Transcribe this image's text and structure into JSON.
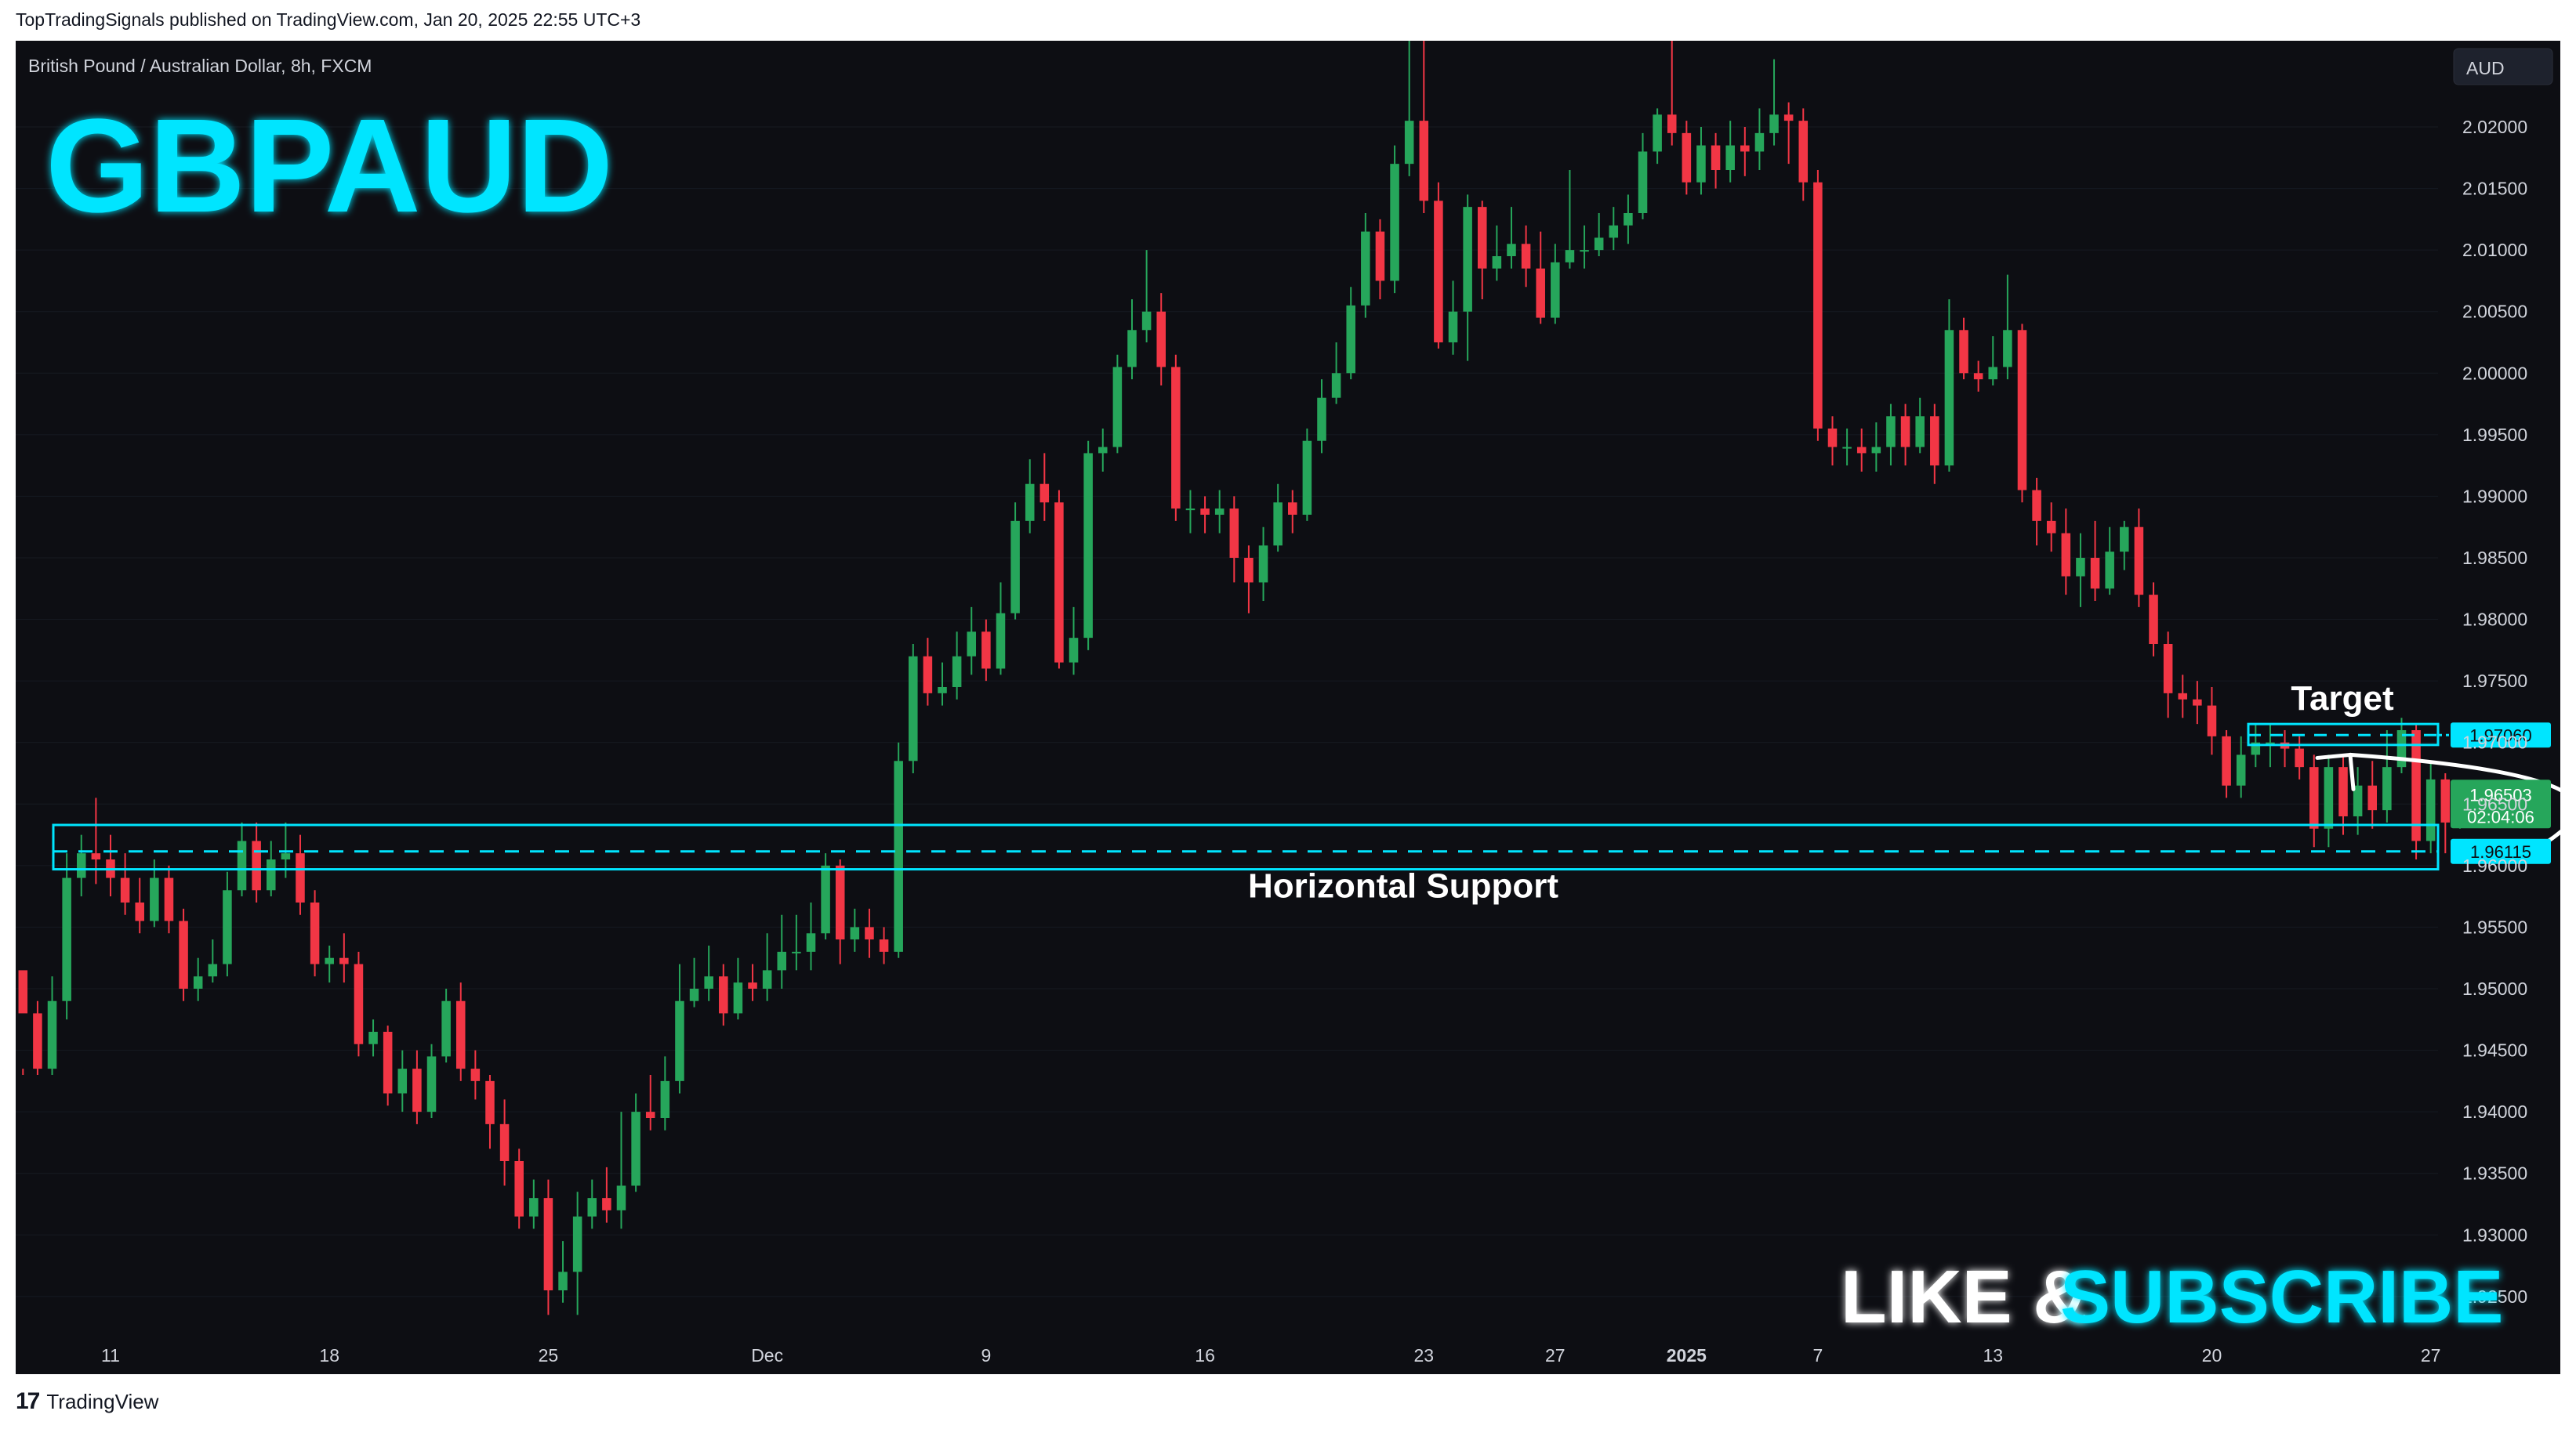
{
  "header": {
    "published_by": "TopTradingSignals published on TradingView.com, Jan 20, 2025 22:55 UTC+3"
  },
  "footer": {
    "brand": "TradingView"
  },
  "chart_meta": {
    "symbol_title": "British Pound / Australian Dollar, 8h, FXCM",
    "big_ticker": "GBPAUD",
    "currency_button": "AUD",
    "cta_like": "LIKE &",
    "cta_subscribe": "SUBSCRIBE",
    "current_price_label": "1.96503",
    "countdown_label": "02:04:06",
    "support_price_label": "1.96115",
    "target_price_label": "1.97060",
    "colors": {
      "background": "#0d0e13",
      "up_candle": "#26a65b",
      "down_candle": "#f23645",
      "annotation": "#00e5ff",
      "text": "#d1d4dc"
    }
  },
  "chart_data": {
    "type": "candlestick",
    "title": "British Pound / Australian Dollar, 8h, FXCM",
    "timeframe": "8h",
    "y_axis": {
      "side": "right",
      "ylim": [
        1.922,
        2.027
      ],
      "ticks": [
        1.925,
        1.93,
        1.935,
        1.94,
        1.945,
        1.95,
        1.955,
        1.96,
        1.965,
        1.97,
        1.975,
        1.98,
        1.985,
        1.99,
        1.995,
        2.0,
        2.005,
        2.01,
        2.015,
        2.02
      ],
      "tick_labels": [
        "1.92500",
        "1.93000",
        "1.93500",
        "1.94000",
        "1.94500",
        "1.95000",
        "1.95500",
        "1.96000",
        "1.96500",
        "1.97000",
        "1.97500",
        "1.98000",
        "1.98500",
        "1.99000",
        "1.99500",
        "2.00000",
        "2.00500",
        "2.01000",
        "2.01500",
        "2.02000"
      ]
    },
    "x_axis": {
      "labels": [
        {
          "text": "11",
          "bar": 6
        },
        {
          "text": "18",
          "bar": 21
        },
        {
          "text": "25",
          "bar": 36
        },
        {
          "text": "Dec",
          "bar": 51
        },
        {
          "text": "9",
          "bar": 66
        },
        {
          "text": "16",
          "bar": 81
        },
        {
          "text": "23",
          "bar": 96
        },
        {
          "text": "27",
          "bar": 105
        },
        {
          "text": "2025",
          "bar": 114
        },
        {
          "text": "7",
          "bar": 123
        },
        {
          "text": "13",
          "bar": 135
        },
        {
          "text": "20",
          "bar": 150
        },
        {
          "text": "27",
          "bar": 165
        }
      ]
    },
    "total_slots": 166,
    "candles": [
      [
        1.9515,
        1.948,
        1.9435,
        1.943
      ],
      [
        1.948,
        1.9435,
        1.949,
        1.943
      ],
      [
        1.9435,
        1.949,
        1.951,
        1.943
      ],
      [
        1.949,
        1.959,
        1.961,
        1.9475
      ],
      [
        1.959,
        1.961,
        1.9625,
        1.9575
      ],
      [
        1.961,
        1.9605,
        1.9655,
        1.9585
      ],
      [
        1.9605,
        1.959,
        1.9625,
        1.9575
      ],
      [
        1.959,
        1.957,
        1.961,
        1.956
      ],
      [
        1.957,
        1.9555,
        1.959,
        1.9545
      ],
      [
        1.9555,
        1.959,
        1.9605,
        1.955
      ],
      [
        1.959,
        1.9555,
        1.96,
        1.9545
      ],
      [
        1.9555,
        1.95,
        1.9565,
        1.949
      ],
      [
        1.95,
        1.951,
        1.9525,
        1.949
      ],
      [
        1.951,
        1.952,
        1.954,
        1.9505
      ],
      [
        1.952,
        1.958,
        1.9595,
        1.951
      ],
      [
        1.958,
        1.962,
        1.9635,
        1.9575
      ],
      [
        1.962,
        1.958,
        1.9635,
        1.957
      ],
      [
        1.958,
        1.9605,
        1.962,
        1.9575
      ],
      [
        1.9605,
        1.961,
        1.9635,
        1.959
      ],
      [
        1.961,
        1.957,
        1.9625,
        1.956
      ],
      [
        1.957,
        1.952,
        1.958,
        1.951
      ],
      [
        1.952,
        1.9525,
        1.9535,
        1.9505
      ],
      [
        1.9525,
        1.952,
        1.9545,
        1.9505
      ],
      [
        1.952,
        1.9455,
        1.953,
        1.9445
      ],
      [
        1.9455,
        1.9465,
        1.9475,
        1.9445
      ],
      [
        1.9465,
        1.9415,
        1.947,
        1.9405
      ],
      [
        1.9415,
        1.9435,
        1.945,
        1.94
      ],
      [
        1.9435,
        1.94,
        1.945,
        1.939
      ],
      [
        1.94,
        1.9445,
        1.9455,
        1.9395
      ],
      [
        1.9445,
        1.949,
        1.95,
        1.944
      ],
      [
        1.949,
        1.9435,
        1.9505,
        1.9425
      ],
      [
        1.9435,
        1.9425,
        1.945,
        1.941
      ],
      [
        1.9425,
        1.939,
        1.943,
        1.937
      ],
      [
        1.939,
        1.936,
        1.941,
        1.934
      ],
      [
        1.936,
        1.9315,
        1.937,
        1.9305
      ],
      [
        1.9315,
        1.933,
        1.9345,
        1.9305
      ],
      [
        1.933,
        1.9255,
        1.9345,
        1.9235
      ],
      [
        1.9255,
        1.927,
        1.9295,
        1.9245
      ],
      [
        1.927,
        1.9315,
        1.9335,
        1.9235
      ],
      [
        1.9315,
        1.933,
        1.9345,
        1.9305
      ],
      [
        1.933,
        1.932,
        1.9355,
        1.931
      ],
      [
        1.932,
        1.934,
        1.94,
        1.9305
      ],
      [
        1.934,
        1.94,
        1.9415,
        1.9335
      ],
      [
        1.94,
        1.9395,
        1.943,
        1.9385
      ],
      [
        1.9395,
        1.9425,
        1.9445,
        1.9385
      ],
      [
        1.9425,
        1.949,
        1.952,
        1.9415
      ],
      [
        1.949,
        1.95,
        1.9525,
        1.9485
      ],
      [
        1.95,
        1.951,
        1.9535,
        1.949
      ],
      [
        1.951,
        1.948,
        1.952,
        1.947
      ],
      [
        1.948,
        1.9505,
        1.9525,
        1.9475
      ],
      [
        1.9505,
        1.95,
        1.952,
        1.949
      ],
      [
        1.95,
        1.9515,
        1.9545,
        1.949
      ],
      [
        1.9515,
        1.953,
        1.956,
        1.95
      ],
      [
        1.953,
        1.953,
        1.956,
        1.9515
      ],
      [
        1.953,
        1.9545,
        1.957,
        1.9515
      ],
      [
        1.9545,
        1.96,
        1.961,
        1.954
      ],
      [
        1.96,
        1.954,
        1.9605,
        1.952
      ],
      [
        1.954,
        1.955,
        1.9565,
        1.953
      ],
      [
        1.955,
        1.954,
        1.9565,
        1.9525
      ],
      [
        1.954,
        1.953,
        1.955,
        1.952
      ],
      [
        1.953,
        1.9685,
        1.97,
        1.9525
      ],
      [
        1.9685,
        1.977,
        1.978,
        1.9675
      ],
      [
        1.977,
        1.974,
        1.9785,
        1.973
      ],
      [
        1.974,
        1.9745,
        1.9765,
        1.973
      ],
      [
        1.9745,
        1.977,
        1.979,
        1.9735
      ],
      [
        1.977,
        1.979,
        1.981,
        1.9755
      ],
      [
        1.979,
        1.976,
        1.98,
        1.975
      ],
      [
        1.976,
        1.9805,
        1.983,
        1.9755
      ],
      [
        1.9805,
        1.988,
        1.9895,
        1.98
      ],
      [
        1.988,
        1.991,
        1.993,
        1.987
      ],
      [
        1.991,
        1.9895,
        1.9935,
        1.988
      ],
      [
        1.9895,
        1.9765,
        1.9905,
        1.976
      ],
      [
        1.9765,
        1.9785,
        1.981,
        1.9755
      ],
      [
        1.9785,
        1.9935,
        1.9945,
        1.9775
      ],
      [
        1.9935,
        1.994,
        1.9955,
        1.992
      ],
      [
        1.994,
        2.0005,
        2.0015,
        1.9935
      ],
      [
        2.0005,
        2.0035,
        2.006,
        1.9995
      ],
      [
        2.0035,
        2.005,
        2.01,
        2.0025
      ],
      [
        2.005,
        2.0005,
        2.0065,
        1.999
      ],
      [
        2.0005,
        1.989,
        2.0015,
        1.988
      ],
      [
        1.989,
        1.989,
        1.9905,
        1.987
      ],
      [
        1.989,
        1.9885,
        1.99,
        1.987
      ],
      [
        1.9885,
        1.989,
        1.9905,
        1.987
      ],
      [
        1.989,
        1.985,
        1.99,
        1.983
      ],
      [
        1.985,
        1.983,
        1.986,
        1.9805
      ],
      [
        1.983,
        1.986,
        1.9875,
        1.9815
      ],
      [
        1.986,
        1.9895,
        1.991,
        1.9855
      ],
      [
        1.9895,
        1.9885,
        1.9905,
        1.987
      ],
      [
        1.9885,
        1.9945,
        1.9955,
        1.988
      ],
      [
        1.9945,
        1.998,
        1.9995,
        1.9935
      ],
      [
        1.998,
        2.0,
        2.0025,
        1.9975
      ],
      [
        2.0,
        2.0055,
        2.007,
        1.9995
      ],
      [
        2.0055,
        2.0115,
        2.013,
        2.0045
      ],
      [
        2.0115,
        2.0075,
        2.0125,
        2.006
      ],
      [
        2.0075,
        2.017,
        2.0185,
        2.0065
      ],
      [
        2.017,
        2.0205,
        2.027,
        2.016
      ],
      [
        2.0205,
        2.014,
        2.027,
        2.013
      ],
      [
        2.014,
        2.0025,
        2.0155,
        2.002
      ],
      [
        2.0025,
        2.005,
        2.0075,
        2.0015
      ],
      [
        2.005,
        2.0135,
        2.0145,
        2.001
      ],
      [
        2.0135,
        2.0085,
        2.014,
        2.006
      ],
      [
        2.0085,
        2.0095,
        2.012,
        2.0075
      ],
      [
        2.0095,
        2.0105,
        2.0135,
        2.0085
      ],
      [
        2.0105,
        2.0085,
        2.012,
        2.007
      ],
      [
        2.0085,
        2.0045,
        2.0115,
        2.004
      ],
      [
        2.0045,
        2.009,
        2.0105,
        2.004
      ],
      [
        2.009,
        2.01,
        2.0165,
        2.0085
      ],
      [
        2.01,
        2.01,
        2.012,
        2.0085
      ],
      [
        2.01,
        2.011,
        2.013,
        2.0095
      ],
      [
        2.011,
        2.012,
        2.0135,
        2.01
      ],
      [
        2.012,
        2.013,
        2.0145,
        2.0105
      ],
      [
        2.013,
        2.018,
        2.0195,
        2.0125
      ],
      [
        2.018,
        2.021,
        2.0215,
        2.017
      ],
      [
        2.021,
        2.0195,
        2.027,
        2.0185
      ],
      [
        2.0195,
        2.0155,
        2.0205,
        2.0145
      ],
      [
        2.0155,
        2.0185,
        2.02,
        2.0145
      ],
      [
        2.0185,
        2.0165,
        2.0195,
        2.015
      ],
      [
        2.0165,
        2.0185,
        2.0205,
        2.0155
      ],
      [
        2.0185,
        2.018,
        2.02,
        2.016
      ],
      [
        2.018,
        2.0195,
        2.0215,
        2.0165
      ],
      [
        2.0195,
        2.021,
        2.0255,
        2.0185
      ],
      [
        2.021,
        2.0205,
        2.022,
        2.017
      ],
      [
        2.0205,
        2.0155,
        2.0215,
        2.014
      ],
      [
        2.0155,
        1.9955,
        2.0165,
        1.9945
      ],
      [
        1.9955,
        1.994,
        1.9965,
        1.9925
      ],
      [
        1.994,
        1.994,
        1.9955,
        1.9925
      ],
      [
        1.994,
        1.9935,
        1.9955,
        1.992
      ],
      [
        1.9935,
        1.994,
        1.996,
        1.992
      ],
      [
        1.994,
        1.9965,
        1.9975,
        1.9925
      ],
      [
        1.9965,
        1.994,
        1.9975,
        1.9925
      ],
      [
        1.994,
        1.9965,
        1.998,
        1.9935
      ],
      [
        1.9965,
        1.9925,
        1.9975,
        1.991
      ],
      [
        1.9925,
        2.0035,
        2.006,
        1.992
      ],
      [
        2.0035,
        2.0,
        2.0045,
        1.9995
      ],
      [
        2.0,
        1.9995,
        2.001,
        1.9985
      ],
      [
        1.9995,
        2.0005,
        2.003,
        1.999
      ],
      [
        2.0005,
        2.0035,
        2.008,
        1.9995
      ],
      [
        2.0035,
        1.9905,
        2.004,
        1.9895
      ],
      [
        1.9905,
        1.988,
        1.9915,
        1.986
      ],
      [
        1.988,
        1.987,
        1.9895,
        1.9855
      ],
      [
        1.987,
        1.9835,
        1.989,
        1.982
      ],
      [
        1.9835,
        1.985,
        1.987,
        1.981
      ],
      [
        1.985,
        1.9825,
        1.988,
        1.9815
      ],
      [
        1.9825,
        1.9855,
        1.9875,
        1.982
      ],
      [
        1.9855,
        1.9875,
        1.988,
        1.984
      ],
      [
        1.9875,
        1.982,
        1.989,
        1.981
      ],
      [
        1.982,
        1.978,
        1.983,
        1.977
      ]
    ],
    "last_candles": [
      [
        1.978,
        1.974,
        1.979,
        1.972
      ],
      [
        1.974,
        1.9735,
        1.9755,
        1.972
      ],
      [
        1.9735,
        1.973,
        1.975,
        1.9715
      ],
      [
        1.973,
        1.9705,
        1.9745,
        1.969
      ],
      [
        1.9705,
        1.9665,
        1.971,
        1.9655
      ],
      [
        1.9665,
        1.969,
        1.9705,
        1.9655
      ],
      [
        1.969,
        1.97,
        1.9715,
        1.968
      ],
      [
        1.97,
        1.97,
        1.9715,
        1.968
      ],
      [
        1.97,
        1.9695,
        1.971,
        1.968
      ],
      [
        1.9695,
        1.968,
        1.9705,
        1.967
      ],
      [
        1.968,
        1.963,
        1.969,
        1.9615
      ],
      [
        1.963,
        1.968,
        1.969,
        1.9615
      ],
      [
        1.968,
        1.964,
        1.969,
        1.9625
      ],
      [
        1.964,
        1.9665,
        1.968,
        1.9625
      ],
      [
        1.9665,
        1.9645,
        1.9685,
        1.963
      ],
      [
        1.9645,
        1.968,
        1.971,
        1.9635
      ],
      [
        1.968,
        1.971,
        1.972,
        1.9675
      ],
      [
        1.971,
        1.962,
        1.9715,
        1.9605
      ],
      [
        1.962,
        1.967,
        1.9685,
        1.961
      ],
      [
        1.967,
        1.9635,
        1.9675,
        1.961
      ],
      [
        1.9635,
        1.965,
        1.966,
        1.963
      ]
    ],
    "annotations": {
      "horizontal_support": {
        "label": "Horizontal Support",
        "price": 1.96115,
        "zone": [
          1.9597,
          1.9633
        ]
      },
      "target": {
        "label": "Target",
        "price": 1.9706,
        "zone": [
          1.9698,
          1.9715
        ]
      }
    }
  }
}
